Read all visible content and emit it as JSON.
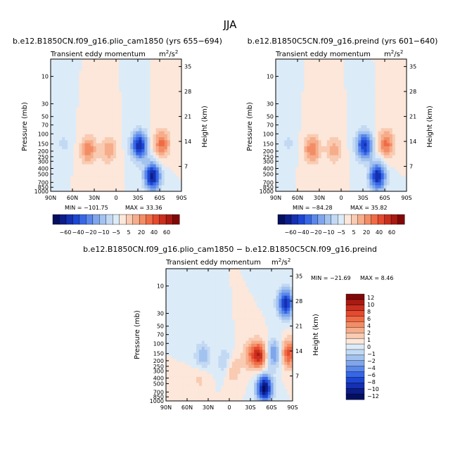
{
  "figure_title": "JJA",
  "chart_data": [
    {
      "type": "heatmap",
      "panel": "top-left",
      "title": "b.e12.B1850CN.f09_g16.plio_cam1850 (yrs 655−694)",
      "field_left": "Transient eddy momentum",
      "field_units": "m²/s²",
      "units_base": "m",
      "units_mid": "2",
      "units_slash": "/s",
      "units_end": "2",
      "ylabel": "Pressure (mb)",
      "ylabel_right": "Height (km)",
      "xticks": [
        "90N",
        "60N",
        "30N",
        "0",
        "30S",
        "60S",
        "90S"
      ],
      "xtick_values": [
        90,
        60,
        30,
        0,
        -30,
        -60,
        -90
      ],
      "yticks": [
        "10",
        "30",
        "50",
        "70",
        "100",
        "150",
        "200",
        "250",
        "300",
        "400",
        "500",
        "700",
        "850",
        "1000"
      ],
      "ytick_values": [
        10,
        30,
        50,
        70,
        100,
        150,
        200,
        250,
        300,
        400,
        500,
        700,
        850,
        1000
      ],
      "yticks_right": [
        "35",
        "28",
        "21",
        "14",
        "7"
      ],
      "ytick_right_values": [
        35,
        28,
        21,
        14,
        7
      ],
      "min_label": "MIN = −101.75",
      "max_label": "MAX =   33.36",
      "min": -101.75,
      "max": 33.36,
      "colorbar_labels": [
        "−60",
        "−40",
        "−20",
        "−10",
        "−5",
        "5",
        "20",
        "40",
        "60"
      ],
      "features": [
        {
          "sign": "neg",
          "lat": -32,
          "p": 1.6,
          "amp": 0.8
        },
        {
          "sign": "neg",
          "lat": -50,
          "p": 5.5,
          "amp": 0.85
        },
        {
          "sign": "pos",
          "lat": 38,
          "p": 1.9,
          "amp": 0.42
        },
        {
          "sign": "pos",
          "lat": 10,
          "p": 1.9,
          "amp": 0.3
        },
        {
          "sign": "pos",
          "lat": -63,
          "p": 1.5,
          "amp": 0.48
        },
        {
          "sign": "neg",
          "lat": 72,
          "p": 1.5,
          "amp": 0.12
        }
      ]
    },
    {
      "type": "heatmap",
      "panel": "top-right",
      "title": "b.e12.B1850C5CN.f09_g16.preind (yrs 601−640)",
      "field_left": "Transient eddy momentum",
      "field_units": "m²/s²",
      "units_base": "m",
      "units_mid": "2",
      "units_slash": "/s",
      "units_end": "2",
      "ylabel": "Pressure (mb)",
      "ylabel_right": "Height (km)",
      "xticks": [
        "90N",
        "60N",
        "30N",
        "0",
        "30S",
        "60S",
        "90S"
      ],
      "xtick_values": [
        90,
        60,
        30,
        0,
        -30,
        -60,
        -90
      ],
      "yticks": [
        "10",
        "30",
        "50",
        "70",
        "100",
        "150",
        "200",
        "250",
        "300",
        "400",
        "500",
        "700",
        "850",
        "1000"
      ],
      "ytick_values": [
        10,
        30,
        50,
        70,
        100,
        150,
        200,
        250,
        300,
        400,
        500,
        700,
        850,
        1000
      ],
      "yticks_right": [
        "35",
        "28",
        "21",
        "14",
        "7"
      ],
      "ytick_right_values": [
        35,
        28,
        21,
        14,
        7
      ],
      "min_label": "MIN = −84.28",
      "max_label": "MAX =   35.82",
      "min": -84.28,
      "max": 35.82,
      "colorbar_labels": [
        "−60",
        "−40",
        "−20",
        "−10",
        "−5",
        "5",
        "20",
        "40",
        "60"
      ],
      "features": [
        {
          "sign": "neg",
          "lat": -32,
          "p": 1.6,
          "amp": 0.72
        },
        {
          "sign": "neg",
          "lat": -50,
          "p": 5.5,
          "amp": 0.8
        },
        {
          "sign": "pos",
          "lat": 40,
          "p": 1.85,
          "amp": 0.45
        },
        {
          "sign": "pos",
          "lat": 10,
          "p": 1.9,
          "amp": 0.28
        },
        {
          "sign": "pos",
          "lat": -62,
          "p": 1.5,
          "amp": 0.48
        },
        {
          "sign": "neg",
          "lat": 72,
          "p": 1.5,
          "amp": 0.12
        }
      ]
    },
    {
      "type": "heatmap",
      "panel": "bottom",
      "title": "b.e12.B1850CN.f09_g16.plio_cam1850 − b.e12.B1850C5CN.f09_g16.preind",
      "field_left": "Transient eddy momentum",
      "field_units": "m²/s²",
      "units_base": "m",
      "units_mid": "2",
      "units_slash": "/s",
      "units_end": "2",
      "ylabel": "Pressure (mb)",
      "ylabel_right": "Height (km)",
      "xticks": [
        "90N",
        "60N",
        "30N",
        "0",
        "30S",
        "60S",
        "90S"
      ],
      "xtick_values": [
        90,
        60,
        30,
        0,
        -30,
        -60,
        -90
      ],
      "yticks": [
        "10",
        "30",
        "50",
        "70",
        "100",
        "150",
        "200",
        "250",
        "300",
        "400",
        "500",
        "700",
        "850",
        "1000"
      ],
      "ytick_values": [
        10,
        30,
        50,
        70,
        100,
        150,
        200,
        250,
        300,
        400,
        500,
        700,
        850,
        1000
      ],
      "yticks_right": [
        "35",
        "28",
        "21",
        "14",
        "7"
      ],
      "ytick_right_values": [
        35,
        28,
        21,
        14,
        7
      ],
      "min_label": "MIN = −21.69",
      "max_label": "MAX =    8.46",
      "min": -21.69,
      "max": 8.46,
      "colorbar_labels": [
        "12",
        "10",
        "8",
        "6",
        "4",
        "2",
        "1",
        "0",
        "−1",
        "−2",
        "−4",
        "−6",
        "−8",
        "−10",
        "−12"
      ],
      "features": [
        {
          "sign": "neg",
          "lat": -50,
          "p": 6.0,
          "amp": 0.85
        },
        {
          "sign": "pos",
          "lat": -42,
          "p": 1.6,
          "amp": 0.75
        },
        {
          "sign": "neg",
          "lat": 38,
          "p": 1.7,
          "amp": 0.28
        },
        {
          "sign": "neg",
          "lat": 5,
          "p": 2.1,
          "amp": 0.22
        },
        {
          "sign": "neg",
          "lat": -63,
          "p": 1.5,
          "amp": 0.4
        },
        {
          "sign": "pos",
          "lat": -5,
          "p": 2.8,
          "amp": 0.25
        },
        {
          "sign": "pos",
          "lat": -28,
          "p": 1.6,
          "amp": 0.25
        },
        {
          "sign": "neg",
          "lat": -80,
          "p": 0.2,
          "amp": 0.7
        },
        {
          "sign": "pos",
          "lat": -85,
          "p": 1.5,
          "amp": 0.6
        },
        {
          "sign": "pos",
          "lat": 42,
          "p": 4.0,
          "amp": 0.15
        }
      ]
    }
  ],
  "colors": {
    "neg": [
      "#dcebf8",
      "#c3d9f3",
      "#a3c3ef",
      "#7fa6ec",
      "#5a87ea",
      "#3767e5",
      "#1d47d2",
      "#1530b0",
      "#0c1d88",
      "#050f5f"
    ],
    "pos": [
      "#fce7da",
      "#f9cbb2",
      "#f6ad8b",
      "#f38d66",
      "#ef6b46",
      "#e44a2f",
      "#c92f1e",
      "#a81a12",
      "#800808"
    ]
  }
}
